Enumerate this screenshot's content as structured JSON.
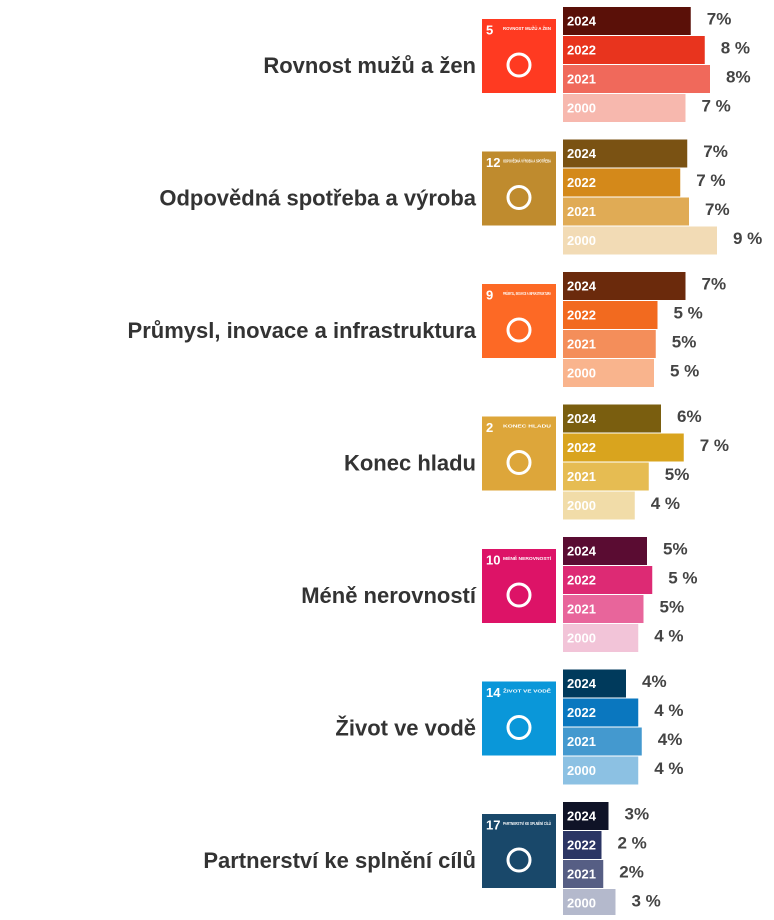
{
  "chart_data": {
    "type": "grouped-bar-horizontal",
    "categories": [
      "Rovnost mužů a žen",
      "Odpovědná spotřeba a výroba",
      "Průmysl, inovace a infrastruktura",
      "Konec hladu",
      "Méně nerovností",
      "Život ve vodě",
      "Partnerství ke splnění cílů"
    ],
    "icons": [
      {
        "number": "5",
        "text": "ROVNOST MUŽŮ A ŽEN",
        "color": "#ff3a21"
      },
      {
        "number": "12",
        "text": "ODPOVĚDNÁ VÝROBA A SPOTŘEBA",
        "color": "#bf8b2e"
      },
      {
        "number": "9",
        "text": "PRŮMYSL, INOVACE A INFRASTRUKTURA",
        "color": "#fd6925"
      },
      {
        "number": "2",
        "text": "KONEC HLADU",
        "color": "#dda63a"
      },
      {
        "number": "10",
        "text": "MÉNĚ NEROVNOSTÍ",
        "color": "#dd1367"
      },
      {
        "number": "14",
        "text": "ŽIVOT VE VODĚ",
        "color": "#0a97d9"
      },
      {
        "number": "17",
        "text": "PARTNERSTVÍ KE SPLNĚNÍ CÍLŮ",
        "color": "#19486a"
      }
    ],
    "series": [
      {
        "name": "2024",
        "colors": [
          "#5a1008",
          "#7a5213",
          "#6b2a0c",
          "#7a5e0f",
          "#5a0c32",
          "#003a5c",
          "#0f1327"
        ],
        "values": [
          7.3,
          7.1,
          7.0,
          5.6,
          4.8,
          3.6,
          2.6
        ],
        "value_labels": [
          "7%",
          "7%",
          "7%",
          "6%",
          "5%",
          "4%",
          "3%"
        ]
      },
      {
        "name": "2022",
        "colors": [
          "#e8341e",
          "#d4891a",
          "#f26a1f",
          "#d9a41e",
          "#dd2a74",
          "#0a77bf",
          "#2b3564"
        ],
        "values": [
          8.1,
          6.7,
          5.4,
          6.9,
          5.1,
          4.3,
          2.2
        ],
        "value_labels": [
          "8 %",
          "7 %",
          "5 %",
          "7 %",
          "5 %",
          "4 %",
          "2 %"
        ]
      },
      {
        "name": "2021",
        "colors": [
          "#f0695b",
          "#e0ab55",
          "#f48e5a",
          "#e6bc52",
          "#e8659b",
          "#4499cf",
          "#565e84"
        ],
        "values": [
          8.4,
          7.2,
          5.3,
          4.9,
          4.6,
          4.5,
          2.3
        ],
        "value_labels": [
          "8%",
          "7%",
          "5%",
          "5%",
          "5%",
          "4%",
          "2%"
        ]
      },
      {
        "name": "2000",
        "colors": [
          "#f7b8ae",
          "#f2dbb5",
          "#f9b48d",
          "#f1dca8",
          "#f2c4d8",
          "#8cc1e3",
          "#b4b9cc"
        ],
        "values": [
          7.0,
          8.8,
          5.2,
          4.1,
          4.3,
          4.3,
          3.0
        ],
        "value_labels": [
          "7 %",
          "9 %",
          "5 %",
          "4 %",
          "4 %",
          "4 %",
          "3 %"
        ]
      }
    ]
  }
}
